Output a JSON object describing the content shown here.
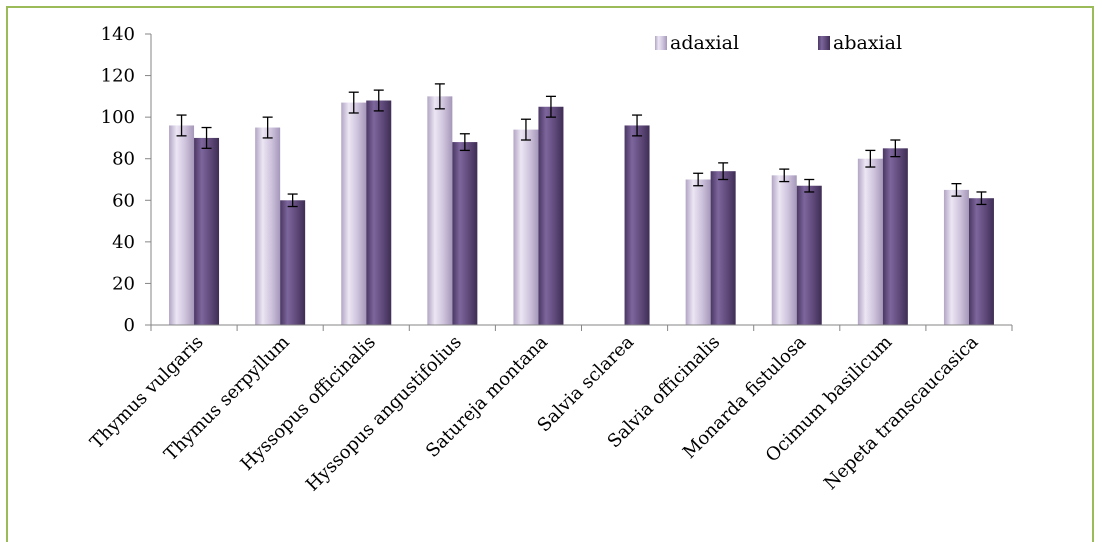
{
  "chart_data": {
    "type": "bar",
    "title": "",
    "xlabel": "",
    "ylabel": "",
    "ylim": [
      0,
      140
    ],
    "yticks": [
      0,
      20,
      40,
      60,
      80,
      100,
      120,
      140
    ],
    "grid": false,
    "legend_position": "top-right",
    "categories": [
      "Thymus vulgaris",
      "Thymus serpyllum",
      "Hyssopus officinalis",
      "Hyssopus angustifolius",
      "Satureja montana",
      "Salvia sclarea",
      "Salvia officinalis",
      "Monarda fistulosa",
      "Ocimum basilicum",
      "Nepeta transcaucasica"
    ],
    "series": [
      {
        "name": "adaxial",
        "color": "#ccc1da",
        "values": [
          96,
          95,
          107,
          110,
          94,
          null,
          70,
          72,
          80,
          65
        ],
        "errors": [
          5,
          5,
          5,
          6,
          5,
          null,
          3,
          3,
          4,
          3
        ]
      },
      {
        "name": "abaxial",
        "color": "#604a7b",
        "values": [
          90,
          60,
          108,
          88,
          105,
          96,
          74,
          67,
          85,
          61
        ],
        "errors": [
          5,
          3,
          5,
          4,
          5,
          5,
          4,
          3,
          4,
          3
        ]
      }
    ]
  },
  "colors": {
    "frame_border": "#9bbb59",
    "axis": "#868686"
  }
}
